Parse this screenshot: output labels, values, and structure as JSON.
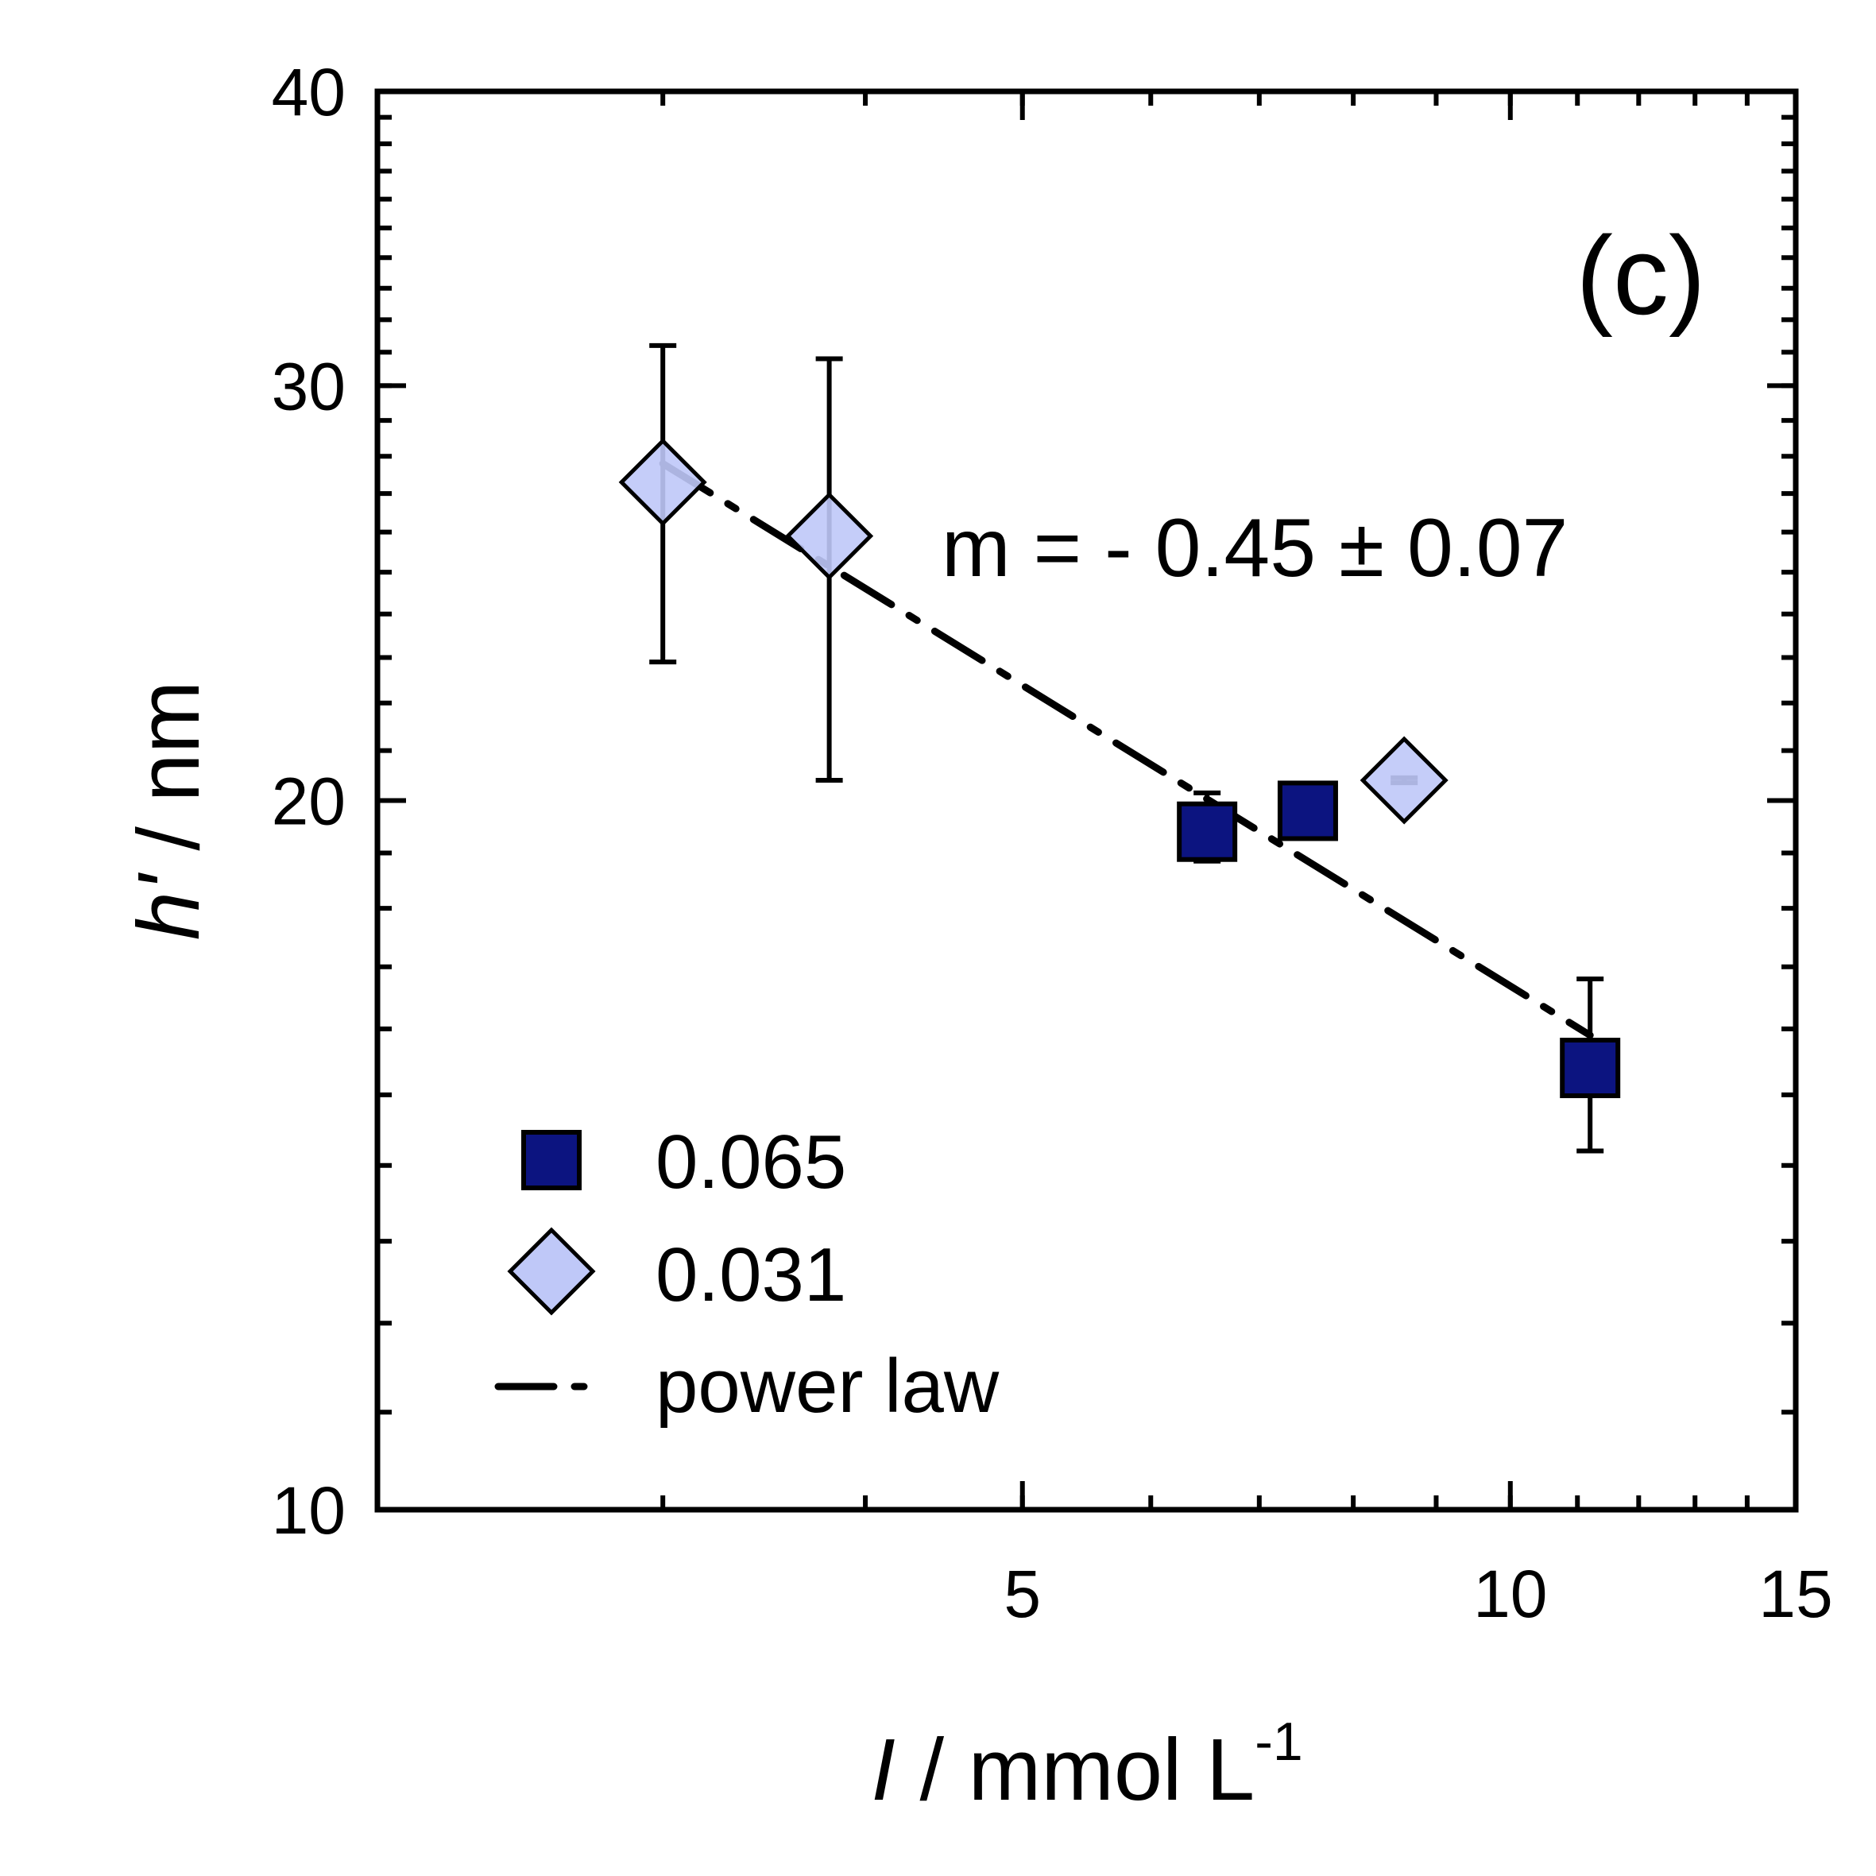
{
  "chart_data": {
    "type": "scatter",
    "panel_label": "(c)",
    "x_scale": "log",
    "y_scale": "log",
    "xlim": [
      2,
      15
    ],
    "ylim": [
      10,
      40
    ],
    "xlabel": {
      "symbol": "I",
      "rest": " / mmol L",
      "superscript": "-1"
    },
    "ylabel": {
      "symbol": "h'",
      "rest": " / nm"
    },
    "x_ticks": [
      {
        "value": 5,
        "label": "5"
      },
      {
        "value": 10,
        "label": "10"
      },
      {
        "value": 15,
        "label": "15"
      }
    ],
    "y_ticks": [
      {
        "value": 10,
        "label": "10"
      },
      {
        "value": 20,
        "label": "20"
      },
      {
        "value": 30,
        "label": "30"
      },
      {
        "value": 40,
        "label": "40"
      }
    ],
    "x_minor_ticks": [
      2,
      3,
      4,
      5,
      6,
      7,
      8,
      9,
      10,
      11,
      12,
      13,
      14,
      15
    ],
    "y_minor_ticks": [
      10,
      11,
      12,
      13,
      14,
      15,
      16,
      17,
      18,
      19,
      20,
      21,
      22,
      23,
      24,
      25,
      26,
      27,
      28,
      29,
      30,
      31,
      32,
      33,
      34,
      35,
      36,
      37,
      38,
      39,
      40
    ],
    "series": [
      {
        "name": "0.065",
        "marker": "square",
        "color": "#0c1480",
        "points": [
          {
            "x": 6.5,
            "y": 19.4,
            "err_low": 0.55,
            "err_high": 0.75
          },
          {
            "x": 7.5,
            "y": 19.8,
            "err_low": 0.45,
            "err_high": 0.45
          },
          {
            "x": 11.2,
            "y": 15.4,
            "err_low": 1.2,
            "err_high": 1.4
          }
        ]
      },
      {
        "name": "0.031",
        "marker": "diamond",
        "color": "#bfc8f8",
        "points": [
          {
            "x": 3.0,
            "y": 27.3,
            "err_low": 4.4,
            "err_high": 3.9
          },
          {
            "x": 3.8,
            "y": 25.9,
            "err_low": 5.5,
            "err_high": 4.9
          },
          {
            "x": 8.6,
            "y": 20.4,
            "err_low": 0.05,
            "err_high": 0.05
          }
        ]
      }
    ],
    "fit": {
      "name": "power law",
      "style": "dash-dot",
      "points": [
        {
          "x": 3.0,
          "y": 27.8
        },
        {
          "x": 11.2,
          "y": 15.9
        }
      ]
    },
    "annotation": "m = - 0.45 ± 0.07",
    "legend": [
      {
        "label": "0.065",
        "marker": "square"
      },
      {
        "label": "0.031",
        "marker": "diamond"
      },
      {
        "label": "power law",
        "marker": "dash-dot"
      }
    ]
  }
}
